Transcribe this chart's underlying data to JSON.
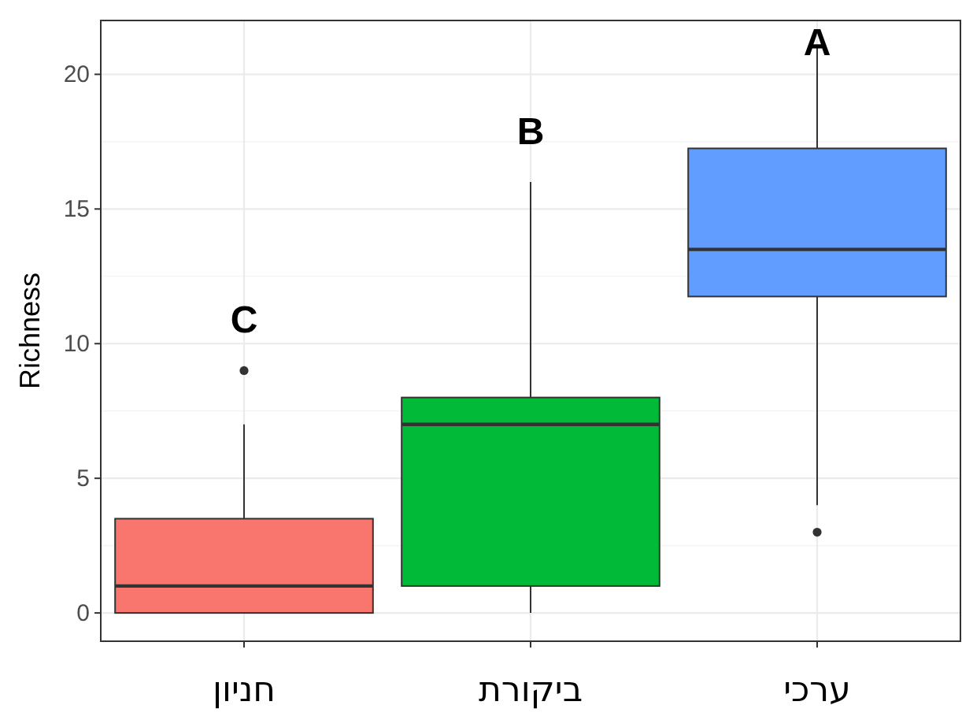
{
  "chart_data": {
    "type": "box",
    "categories": [
      "חניון",
      "ביקורת",
      "ערכי"
    ],
    "colors": [
      "#f8766d",
      "#00ba38",
      "#619cff"
    ],
    "boxes": [
      {
        "low": 0,
        "q1": 0,
        "median": 1,
        "q3": 3.5,
        "high": 7,
        "outliers": [
          9
        ]
      },
      {
        "low": 0,
        "q1": 1,
        "median": 7,
        "q3": 8,
        "high": 16
      },
      {
        "low": 4,
        "q1": 11.75,
        "median": 13.5,
        "q3": 17.25,
        "high": 21,
        "outliers": [
          3
        ]
      }
    ],
    "ylabel": "Richness",
    "ylim": [
      -1.05,
      22
    ],
    "yticks": [
      0,
      5,
      10,
      15,
      20
    ],
    "grid": true,
    "annotations": [
      "C",
      "B",
      "A"
    ]
  }
}
